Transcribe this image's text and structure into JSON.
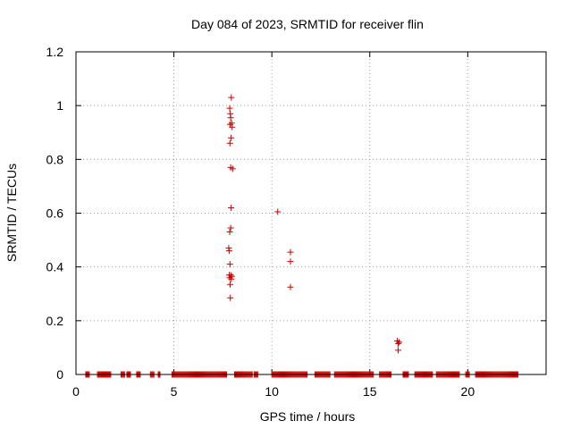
{
  "chart_data": {
    "type": "scatter",
    "title": "Day 084 of 2023, SRMTID for receiver flin",
    "xlabel": "GPS time / hours",
    "ylabel": "SRMTID / TECUs",
    "xlim": [
      0,
      24
    ],
    "ylim": [
      0,
      1.2
    ],
    "xticks": [
      "0",
      "5",
      "10",
      "15",
      "20"
    ],
    "yticks": [
      "0",
      "0.2",
      "0.4",
      "0.6",
      "0.8",
      "1",
      "1.2"
    ],
    "grid": true,
    "marker": "plus",
    "color": "#cc0000",
    "series": [
      {
        "name": "SRMTID",
        "points": [
          [
            7.93,
            1.03
          ],
          [
            7.85,
            0.99
          ],
          [
            7.88,
            0.97
          ],
          [
            7.9,
            0.955
          ],
          [
            7.95,
            0.935
          ],
          [
            7.87,
            0.93
          ],
          [
            7.97,
            0.92
          ],
          [
            7.92,
            0.88
          ],
          [
            7.86,
            0.86
          ],
          [
            7.9,
            0.77
          ],
          [
            8.0,
            0.765
          ],
          [
            7.92,
            0.62
          ],
          [
            7.9,
            0.545
          ],
          [
            7.85,
            0.53
          ],
          [
            7.8,
            0.47
          ],
          [
            7.82,
            0.46
          ],
          [
            7.86,
            0.41
          ],
          [
            7.9,
            0.37
          ],
          [
            7.82,
            0.37
          ],
          [
            7.95,
            0.365
          ],
          [
            7.85,
            0.36
          ],
          [
            7.93,
            0.355
          ],
          [
            7.87,
            0.335
          ],
          [
            7.88,
            0.285
          ],
          [
            10.3,
            0.605
          ],
          [
            10.95,
            0.455
          ],
          [
            10.95,
            0.42
          ],
          [
            10.95,
            0.325
          ],
          [
            16.4,
            0.125
          ],
          [
            16.5,
            0.12
          ],
          [
            16.45,
            0.115
          ],
          [
            16.45,
            0.09
          ]
        ],
        "zero_runs": [
          [
            0.5,
            0.7
          ],
          [
            1.1,
            1.8
          ],
          [
            2.3,
            2.5
          ],
          [
            2.6,
            2.8
          ],
          [
            3.1,
            3.3
          ],
          [
            3.8,
            4.0
          ],
          [
            4.2,
            4.3
          ],
          [
            4.9,
            7.7
          ],
          [
            8.1,
            9.0
          ],
          [
            9.1,
            9.3
          ],
          [
            10.0,
            11.8
          ],
          [
            12.2,
            13.0
          ],
          [
            13.2,
            15.2
          ],
          [
            15.5,
            16.1
          ],
          [
            16.7,
            17.0
          ],
          [
            17.3,
            18.2
          ],
          [
            18.4,
            19.6
          ],
          [
            19.9,
            20.1
          ],
          [
            20.4,
            22.6
          ]
        ]
      }
    ]
  }
}
